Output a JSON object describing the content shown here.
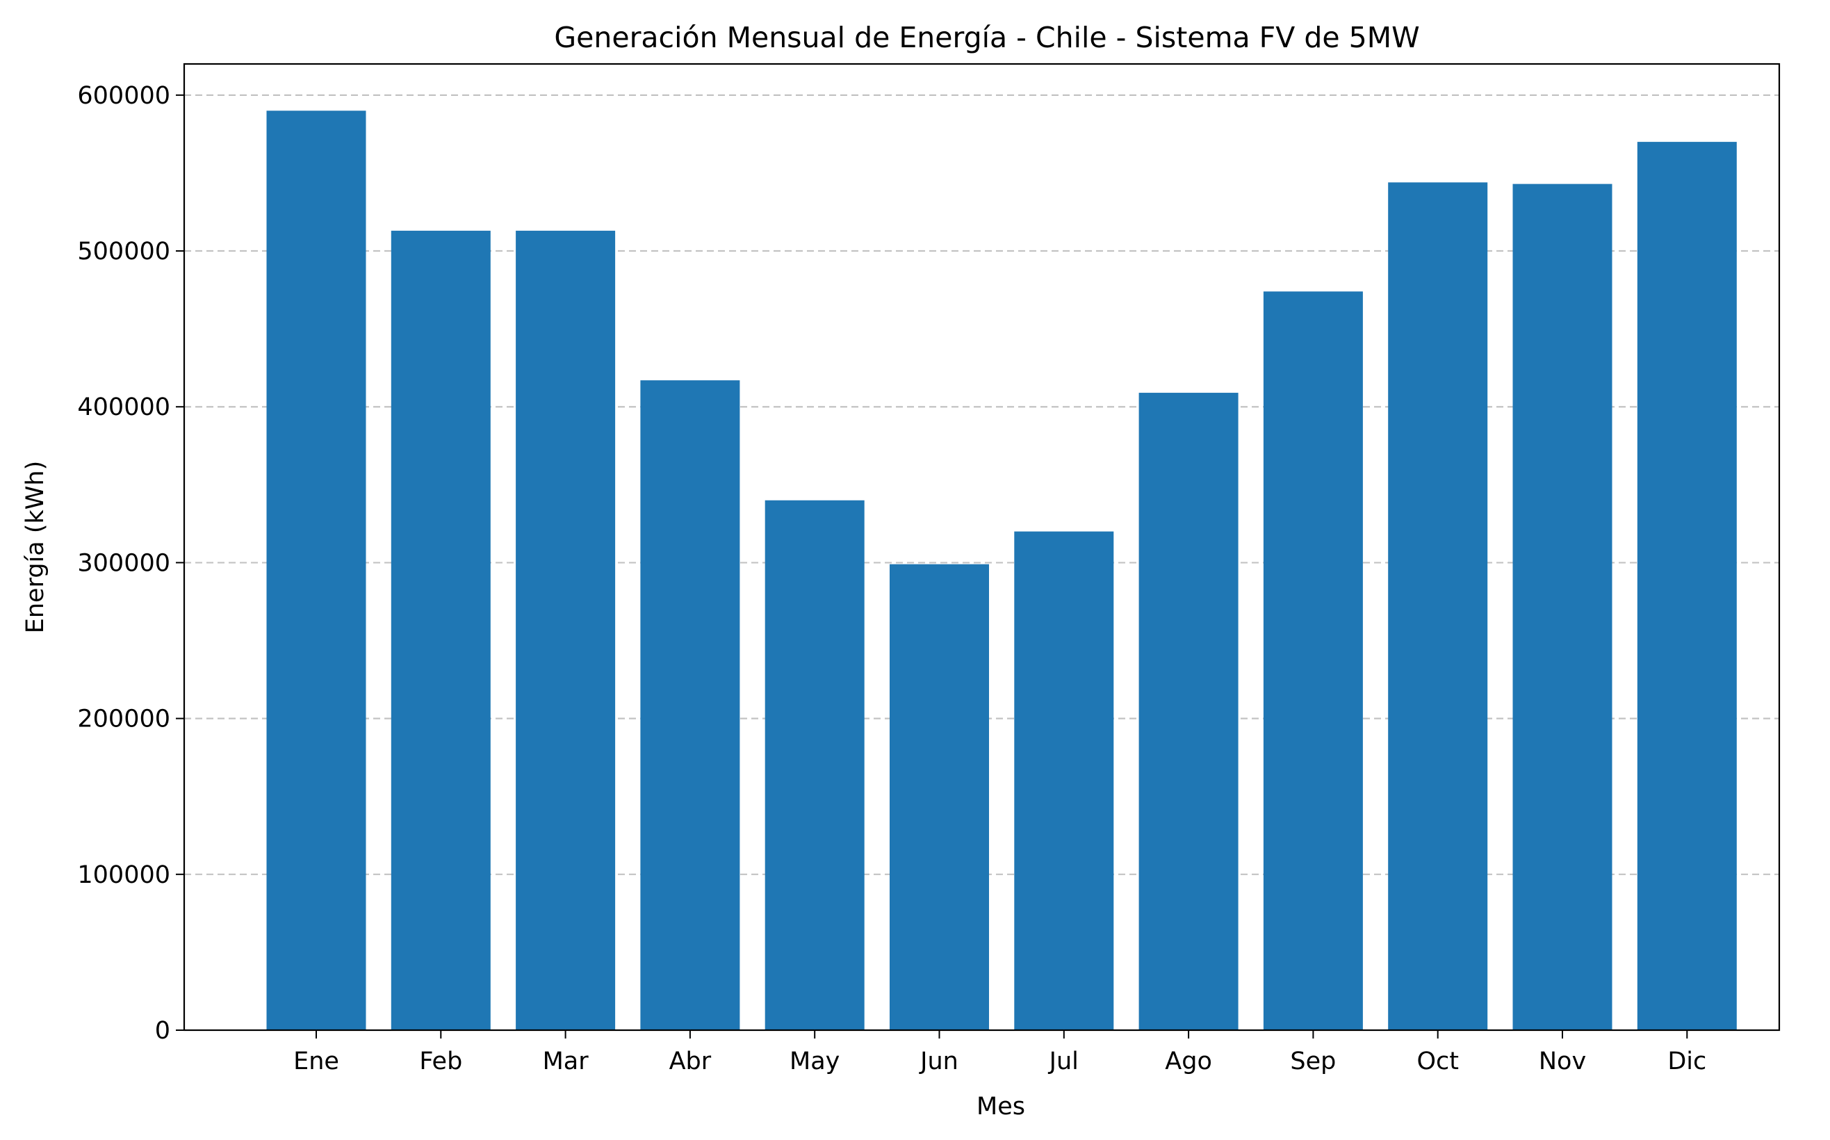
{
  "chart_data": {
    "type": "bar",
    "title": "Generación Mensual de Energía - Chile - Sistema FV de 5MW",
    "xlabel": "Mes",
    "ylabel": "Energía (kWh)",
    "categories": [
      "Ene",
      "Feb",
      "Mar",
      "Abr",
      "May",
      "Jun",
      "Jul",
      "Ago",
      "Sep",
      "Oct",
      "Nov",
      "Dic"
    ],
    "values": [
      590000,
      513000,
      513000,
      417000,
      340000,
      299000,
      320000,
      409000,
      474000,
      544000,
      543000,
      570000
    ],
    "ylim": [
      0,
      620000
    ],
    "yticks": [
      0,
      100000,
      200000,
      300000,
      400000,
      500000,
      600000
    ],
    "ytick_labels": [
      "0",
      "100000",
      "200000",
      "300000",
      "400000",
      "500000",
      "600000"
    ],
    "grid": "y-dashed",
    "bar_color": "#1f77b4"
  }
}
